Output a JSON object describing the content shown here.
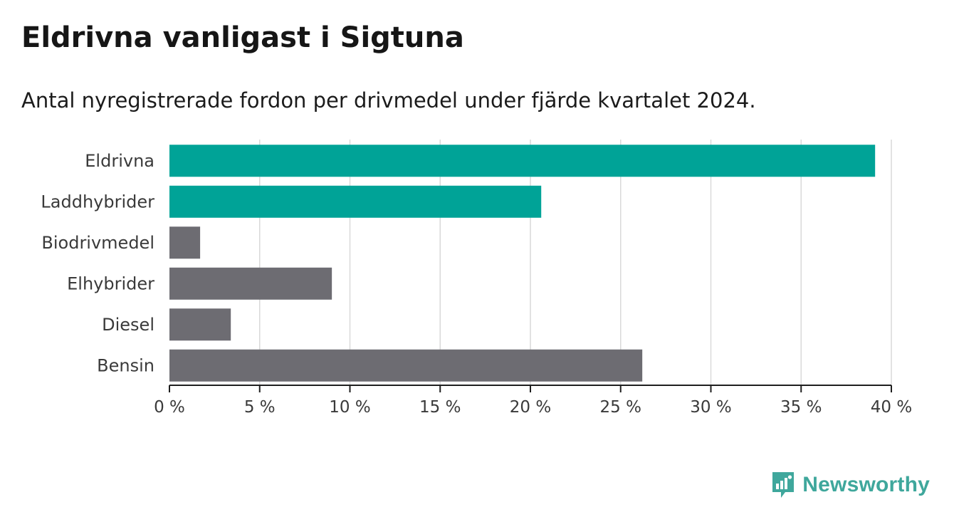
{
  "brand": {
    "name": "Newsworthy",
    "color": "#3fa79c",
    "icon": "newsworthy-logo-icon"
  },
  "chart_data": {
    "type": "bar",
    "orientation": "horizontal",
    "title": "Eldrivna vanligast i Sigtuna",
    "subtitle": "Antal nyregistrerade fordon per drivmedel under fjärde kvartalet 2024.",
    "categories": [
      "Eldrivna",
      "Laddhybrider",
      "Biodrivmedel",
      "Elhybrider",
      "Diesel",
      "Bensin"
    ],
    "values": [
      39.1,
      20.6,
      1.7,
      9.0,
      3.4,
      26.2
    ],
    "unit": "%",
    "highlight_color": "#00a397",
    "base_color": "#6d6c72",
    "highlighted": [
      true,
      true,
      false,
      false,
      false,
      false
    ],
    "xlim": [
      0,
      40
    ],
    "x_ticks": [
      0,
      5,
      10,
      15,
      20,
      25,
      30,
      35,
      40
    ],
    "x_tick_labels": [
      "0 %",
      "5 %",
      "10 %",
      "15 %",
      "20 %",
      "25 %",
      "30 %",
      "35 %",
      "40 %"
    ],
    "xlabel": "",
    "ylabel": "",
    "grid": true
  }
}
